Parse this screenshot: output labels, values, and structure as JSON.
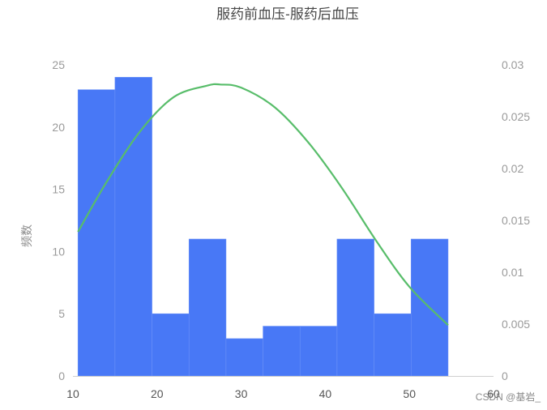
{
  "chart_data": {
    "type": "bar",
    "title": "服药前血压-服药后血压",
    "ylabel": "频数",
    "xlim": [
      10,
      60
    ],
    "ylim": [
      0,
      25
    ],
    "y2lim": [
      0,
      0.03
    ],
    "x_ticks": [
      "10",
      "20",
      "30",
      "40",
      "50",
      "60"
    ],
    "y_ticks": [
      "0",
      "5",
      "10",
      "15",
      "20",
      "25"
    ],
    "y2_ticks": [
      "0",
      "0.005",
      "0.01",
      "0.015",
      "0.02",
      "0.025",
      "0.03"
    ],
    "bins": [
      {
        "start": 10.6,
        "end": 15.0,
        "value": 23
      },
      {
        "start": 15.0,
        "end": 19.4,
        "value": 24
      },
      {
        "start": 19.4,
        "end": 23.8,
        "value": 5
      },
      {
        "start": 23.8,
        "end": 28.2,
        "value": 11
      },
      {
        "start": 28.2,
        "end": 32.6,
        "value": 3
      },
      {
        "start": 32.6,
        "end": 37.0,
        "value": 4
      },
      {
        "start": 37.0,
        "end": 41.4,
        "value": 4
      },
      {
        "start": 41.4,
        "end": 45.8,
        "value": 11
      },
      {
        "start": 45.8,
        "end": 50.2,
        "value": 5
      },
      {
        "start": 50.2,
        "end": 54.6,
        "value": 11
      }
    ],
    "density_curve": {
      "type": "line",
      "axis": "right",
      "x": [
        10.6,
        14,
        18,
        22,
        26,
        27.5,
        30,
        34,
        38,
        42,
        46,
        50,
        54.6
      ],
      "y": [
        0.0139,
        0.0187,
        0.0236,
        0.0269,
        0.028,
        0.0281,
        0.0278,
        0.0259,
        0.0225,
        0.0181,
        0.0131,
        0.0086,
        0.0049
      ]
    },
    "grid": false,
    "legend": "none"
  },
  "colors": {
    "bar": "#4878f6",
    "bar_edge": "#6a91f8",
    "curve": "#58bd6a",
    "axis": "#cfcfcf"
  },
  "watermark": "CSDN @基岩_"
}
